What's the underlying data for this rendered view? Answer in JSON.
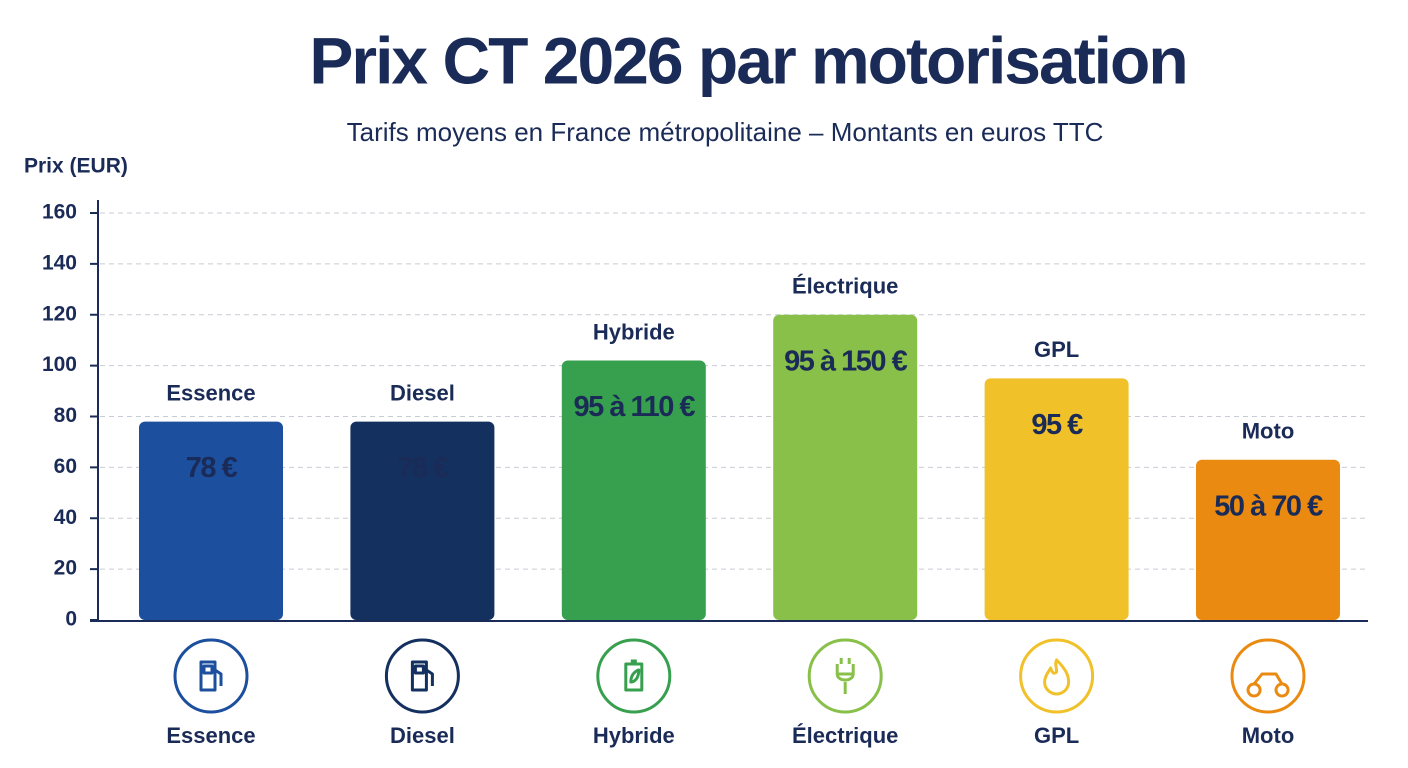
{
  "chart_data": {
    "type": "bar",
    "title": "Prix CT 2026 par motorisation",
    "subtitle": "Tarifs moyens en France métropolitaine – Montants en euros TTC",
    "y_label": "Prix (EUR)",
    "categories": [
      "Essence",
      "Diesel",
      "Hybride",
      "Électrique",
      "GPL",
      "Moto"
    ],
    "values": [
      78,
      78,
      102,
      120,
      95,
      63
    ],
    "value_labels": [
      "78 €",
      "78 €",
      "95 à 110 €",
      "95 à 150 €",
      "95 €",
      "50 à 70 €"
    ],
    "colors": [
      "#1c4f9e",
      "#14305f",
      "#37a04f",
      "#88c04a",
      "#f1c12a",
      "#ea8a10"
    ],
    "ylim": [
      0,
      160
    ],
    "yticks": [
      0,
      20,
      40,
      60,
      80,
      100,
      120,
      140,
      160
    ],
    "grid": true
  }
}
